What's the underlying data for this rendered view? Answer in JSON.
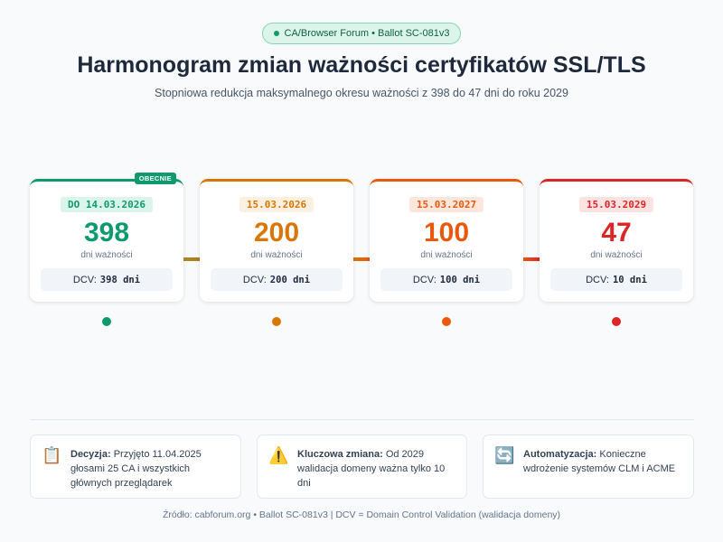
{
  "badge": "CA/Browser Forum • Ballot SC-081v3",
  "header": {
    "title": "Harmonogram zmian ważności certyfikatów SSL/TLS",
    "subtitle": "Stopniowa redukcja maksymalnego okresu ważności z 398 do 47 dni do roku 2029"
  },
  "stages": [
    {
      "date": "DO 14.03.2026",
      "days": "398",
      "unit": "dni ważności",
      "dcv_label": "DCV:",
      "dcv_value": "398 dni",
      "tag": "OBECNIE"
    },
    {
      "date": "15.03.2026",
      "days": "200",
      "unit": "dni ważności",
      "dcv_label": "DCV:",
      "dcv_value": "200 dni"
    },
    {
      "date": "15.03.2027",
      "days": "100",
      "unit": "dni ważności",
      "dcv_label": "DCV:",
      "dcv_value": "100 dni"
    },
    {
      "date": "15.03.2029",
      "days": "47",
      "unit": "dni ważności",
      "dcv_label": "DCV:",
      "dcv_value": "10 dni"
    }
  ],
  "notes": [
    {
      "icon": "📋",
      "label": "Decyzja:",
      "text": "Przyjęto 11.04.2025 głosami 25 CA i wszystkich głównych przeglądarek"
    },
    {
      "icon": "⚠️",
      "label": "Kluczowa zmiana:",
      "text": "Od 2029 walidacja domeny ważna tylko 10 dni"
    },
    {
      "icon": "🔄",
      "label": "Automatyzacja:",
      "text": "Konieczne wdrożenie systemów CLM i ACME"
    }
  ],
  "footer": "Źródło: cabforum.org • Ballot SC-081v3 | DCV = Domain Control Validation (walidacja domeny)"
}
